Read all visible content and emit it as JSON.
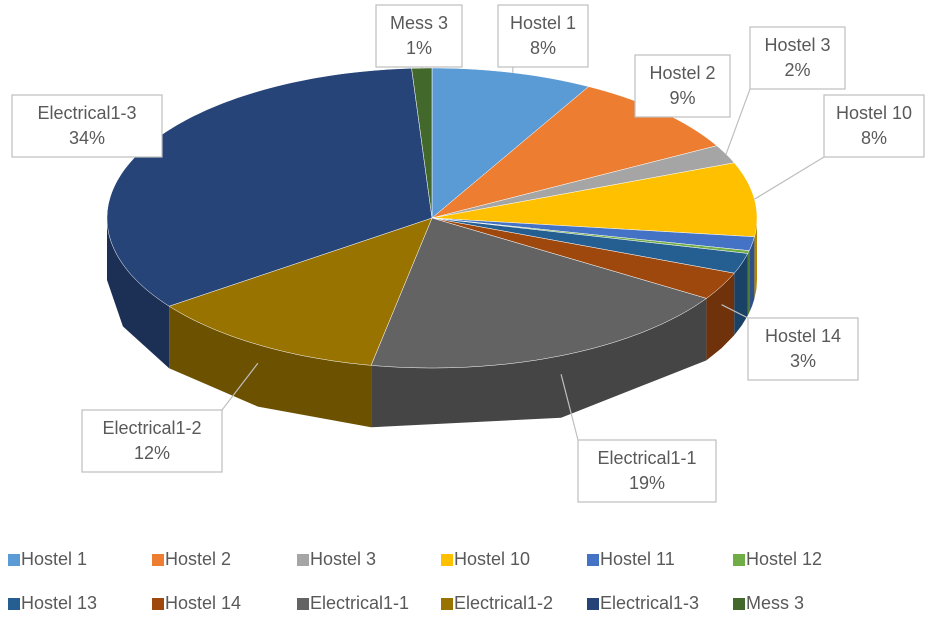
{
  "chart_data": {
    "type": "pie3d",
    "categories": [
      "Hostel 1",
      "Hostel 2",
      "Hostel 3",
      "Hostel 10",
      "Hostel 11",
      "Hostel 12",
      "Hostel 13",
      "Hostel 14",
      "Electrical1-1",
      "Electrical1-2",
      "Electrical1-3",
      "Mess 3"
    ],
    "values": [
      8,
      9,
      2,
      8,
      1.5,
      0.3,
      2.2,
      3,
      19,
      12,
      34,
      1
    ],
    "value_labels": [
      "8%",
      "9%",
      "2%",
      "8%",
      null,
      null,
      null,
      "3%",
      "19%",
      "12%",
      "34%",
      "1%"
    ],
    "colors": [
      "#5b9bd5",
      "#ed7d31",
      "#a5a5a5",
      "#ffc000",
      "#4472c4",
      "#70ad47",
      "#255e91",
      "#9e480e",
      "#636363",
      "#997300",
      "#264478",
      "#43682b"
    ]
  }
}
